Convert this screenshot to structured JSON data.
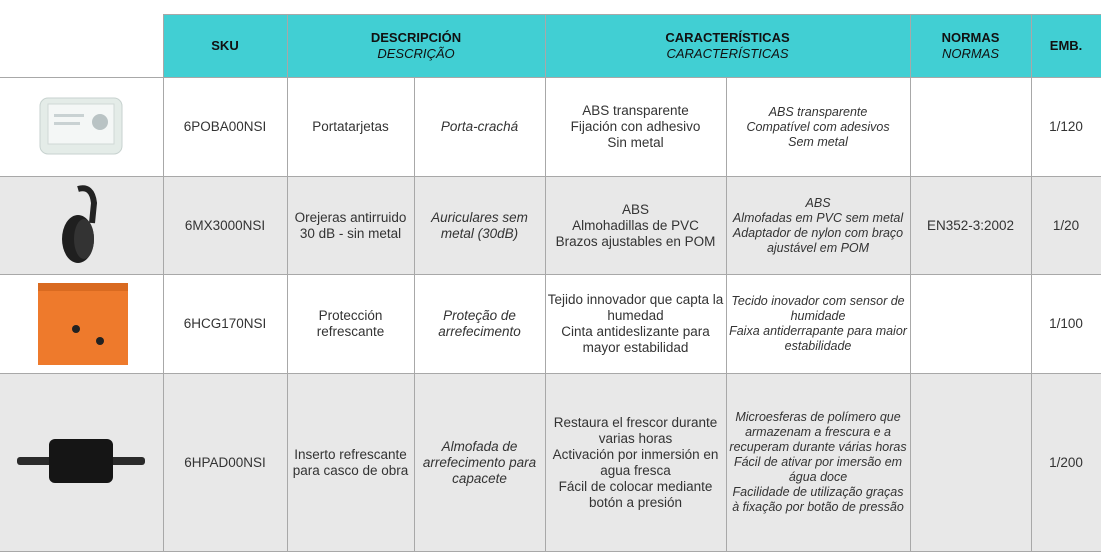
{
  "header": {
    "columns": [
      {
        "title": "SKU"
      },
      {
        "title": "DESCRIPCIÓN",
        "subtitle": "DESCRIÇÃO"
      },
      {
        "title": "CARACTERÍSTICAS",
        "subtitle": "CARACTERÍSTICAS"
      },
      {
        "title": "NORMAS",
        "subtitle": "NORMAS"
      },
      {
        "title": "EMB."
      }
    ]
  },
  "table": {
    "rows": [
      {
        "sku": "6POBA00NSI",
        "desc_es": "Portatarjetas",
        "desc_pt": "Porta-crachá",
        "car_es": [
          "ABS transparente",
          "Fijación con adhesivo",
          "Sin metal"
        ],
        "car_pt": [
          "ABS transparente",
          "Compatível com adesivos",
          "Sem metal"
        ],
        "emb": "1/120"
      },
      {
        "sku": "6MX3000NSI",
        "desc_es": "Orejeras antirruido 30 dB - sin metal",
        "desc_pt": "Auriculares sem metal (30dB)",
        "car_es": [
          "ABS",
          "Almohadillas de PVC",
          "Brazos ajustables en POM"
        ],
        "car_pt": [
          "ABS",
          "Almofadas em PVC sem metal",
          "Adaptador de nylon com braço ajustável em POM"
        ],
        "normas": "EN352-3:2002",
        "emb": "1/20"
      },
      {
        "sku": "6HCG170NSI",
        "desc_es": "Protección refrescante",
        "desc_pt": "Proteção de arrefecimento",
        "car_es": [
          "Tejido innovador que capta la humedad",
          "Cinta antideslizante para mayor estabilidad"
        ],
        "car_pt": [
          "Tecido inovador com sensor de humidade",
          "Faixa antiderrapante para maior estabilidade"
        ],
        "emb": "1/100"
      },
      {
        "sku": "6HPAD00NSI",
        "desc_es": "Inserto refrescante para casco de obra",
        "desc_pt": "Almofada de arrefecimento para capacete",
        "car_es": [
          "Restaura el frescor durante varias horas",
          "Activación por inmersión en agua fresca",
          "Fácil de colocar mediante botón a presión"
        ],
        "car_pt": [
          "Microesferas de polímero que armazenam a frescura e a recuperam durante várias horas",
          "Fácil de ativar por imersão em água doce",
          "Facilidade de utilização graças à fixação por botão de pressão"
        ],
        "emb": "1/200"
      }
    ]
  }
}
